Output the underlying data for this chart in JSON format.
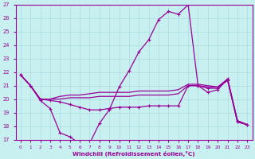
{
  "xlabel": "Windchill (Refroidissement éolien,°C)",
  "x": [
    0,
    1,
    2,
    3,
    4,
    5,
    6,
    7,
    8,
    9,
    10,
    11,
    12,
    13,
    14,
    15,
    16,
    17,
    18,
    19,
    20,
    21,
    22,
    23
  ],
  "series1": [
    21.8,
    21.0,
    19.9,
    19.3,
    17.5,
    17.2,
    16.7,
    16.7,
    18.2,
    19.2,
    20.9,
    22.1,
    23.5,
    24.4,
    25.9,
    26.5,
    26.3,
    27.0,
    21.0,
    20.5,
    20.7,
    21.5,
    18.4,
    18.1
  ],
  "series2": [
    21.8,
    21.0,
    20.0,
    19.9,
    19.8,
    19.6,
    19.4,
    19.2,
    19.2,
    19.3,
    19.4,
    19.4,
    19.4,
    19.5,
    19.5,
    19.5,
    19.5,
    21.0,
    21.0,
    20.8,
    20.8,
    21.4,
    18.3,
    18.1
  ],
  "series3": [
    21.8,
    21.0,
    20.0,
    20.0,
    20.0,
    20.1,
    20.1,
    20.1,
    20.2,
    20.2,
    20.2,
    20.2,
    20.3,
    20.3,
    20.3,
    20.3,
    20.4,
    21.0,
    21.0,
    20.9,
    20.9,
    21.4,
    18.3,
    18.1
  ],
  "series4": [
    21.8,
    21.0,
    20.0,
    20.0,
    20.2,
    20.3,
    20.3,
    20.4,
    20.5,
    20.5,
    20.5,
    20.5,
    20.6,
    20.6,
    20.6,
    20.6,
    20.7,
    21.1,
    21.1,
    21.0,
    20.9,
    21.5,
    18.4,
    18.1
  ],
  "line_color": "#990099",
  "bg_color": "#c8f0f0",
  "grid_color": "#aadddd",
  "text_color": "#990099",
  "ylim": [
    17,
    27
  ],
  "yticks": [
    17,
    18,
    19,
    20,
    21,
    22,
    23,
    24,
    25,
    26,
    27
  ],
  "xticks": [
    0,
    1,
    2,
    3,
    4,
    5,
    6,
    7,
    8,
    9,
    10,
    11,
    12,
    13,
    14,
    15,
    16,
    17,
    18,
    19,
    20,
    21,
    22,
    23
  ]
}
